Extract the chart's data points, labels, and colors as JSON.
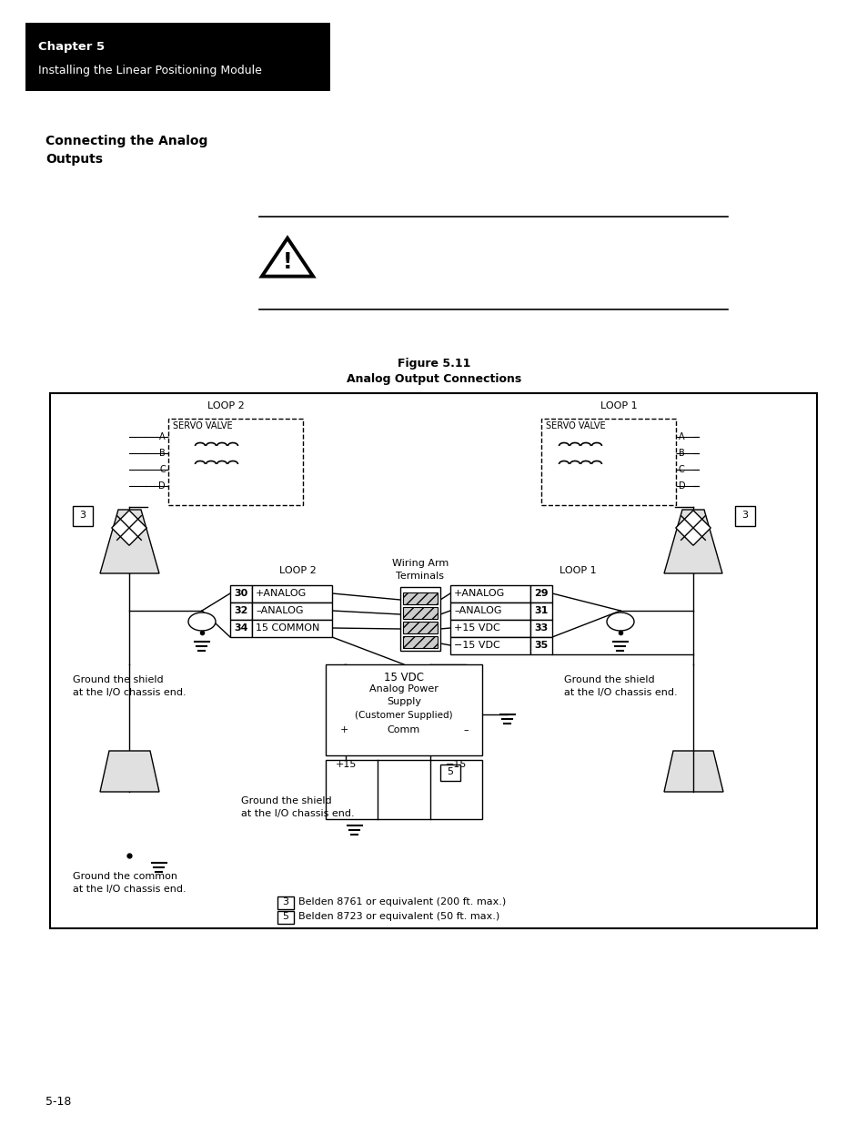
{
  "page_bg": "#ffffff",
  "header_bg": "#000000",
  "header_text_color": "#ffffff",
  "header_line1": "Chapter 5",
  "header_line2": "Installing the Linear Positioning Module",
  "section_title_line1": "Connecting the Analog",
  "section_title_line2": "Outputs",
  "figure_title": "Figure 5.11",
  "figure_subtitle": "Analog Output Connections",
  "footer_page": "5-18",
  "loop2_terms": [
    [
      "30",
      "+ANALOG"
    ],
    [
      "32",
      "–ANALOG"
    ],
    [
      "34",
      "15 COMMON"
    ]
  ],
  "loop1_terms": [
    [
      "+ANALOG",
      "29"
    ],
    [
      "–ANALOG",
      "31"
    ],
    [
      "+15 VDC",
      "33"
    ],
    [
      "−15 VDC",
      "35"
    ]
  ],
  "legend": [
    [
      "3",
      "Belden 8761 or equivalent (200 ft. max.)"
    ],
    [
      "5",
      "Belden 8723 or equivalent (50 ft. max.)"
    ]
  ]
}
